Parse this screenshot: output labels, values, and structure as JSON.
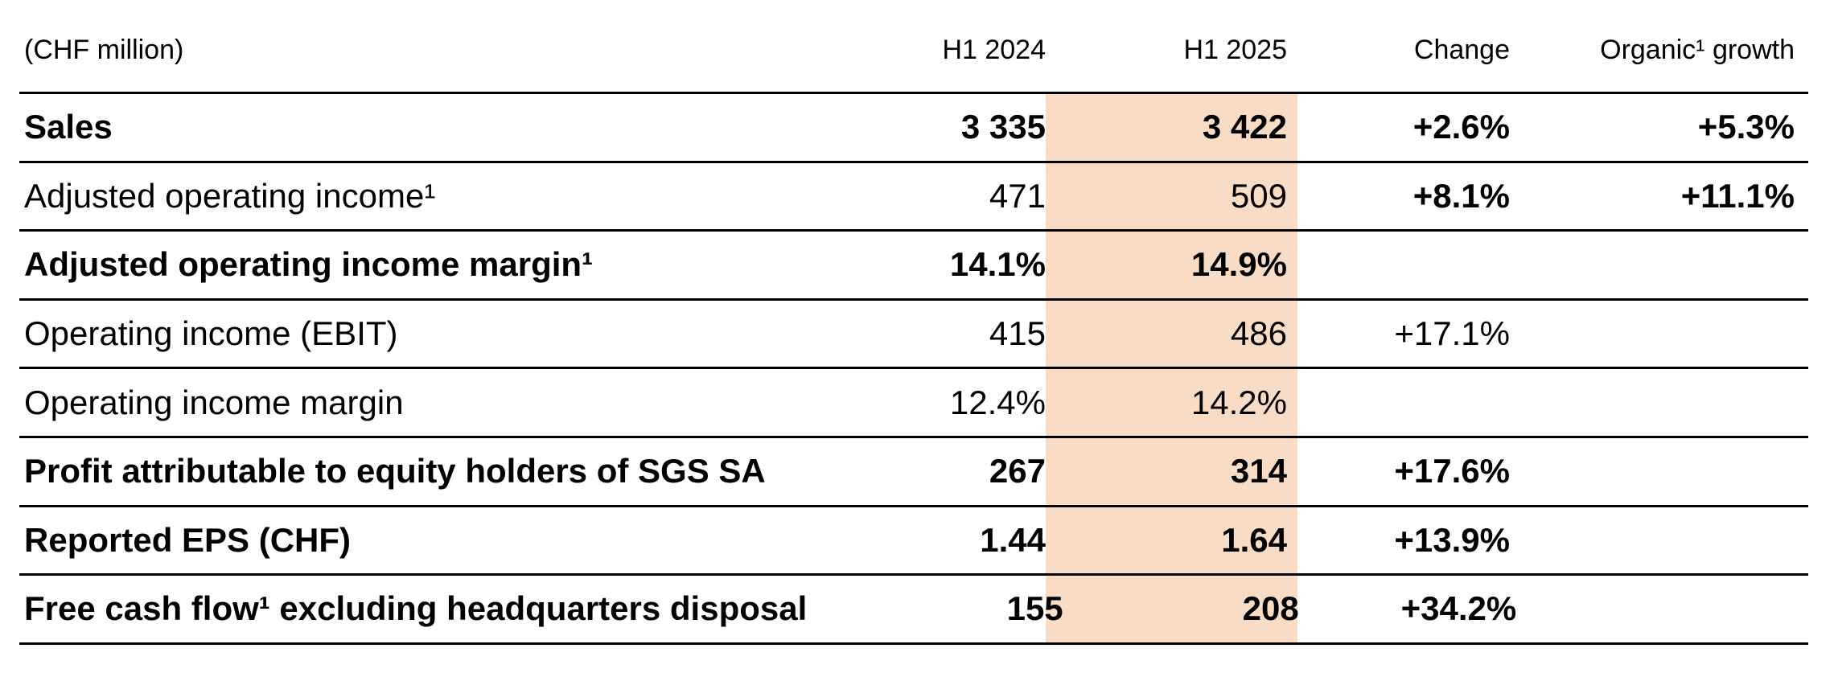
{
  "table": {
    "unit_label": "(CHF million)",
    "highlight_color": "#f8dcc6",
    "rule_color": "#000000",
    "columns": [
      "H1 2024",
      "H1 2025",
      "Change",
      "Organic¹ growth"
    ],
    "rows": [
      {
        "label": "Sales",
        "h1_2024": "3 335",
        "h1_2025": "3 422",
        "change": "+2.6%",
        "organic": "+5.3%"
      },
      {
        "label": "Adjusted operating income¹",
        "h1_2024": "471",
        "h1_2025": "509",
        "change": "+8.1%",
        "organic": "+11.1%"
      },
      {
        "label": "Adjusted operating income margin¹",
        "h1_2024": "14.1%",
        "h1_2025": "14.9%",
        "change": "",
        "organic": ""
      },
      {
        "label": "Operating income (EBIT)",
        "h1_2024": "415",
        "h1_2025": "486",
        "change": "+17.1%",
        "organic": ""
      },
      {
        "label": "Operating income margin",
        "h1_2024": "12.4%",
        "h1_2025": "14.2%",
        "change": "",
        "organic": ""
      },
      {
        "label": "Profit attributable to equity holders of SGS SA",
        "h1_2024": "267",
        "h1_2025": "314",
        "change": "+17.6%",
        "organic": ""
      },
      {
        "label": "Reported EPS (CHF)",
        "h1_2024": "1.44",
        "h1_2025": "1.64",
        "change": "+13.9%",
        "organic": ""
      },
      {
        "label": "Free cash flow¹ excluding headquarters disposal",
        "h1_2024": "155",
        "h1_2025": "208",
        "change": "+34.2%",
        "organic": ""
      }
    ]
  }
}
